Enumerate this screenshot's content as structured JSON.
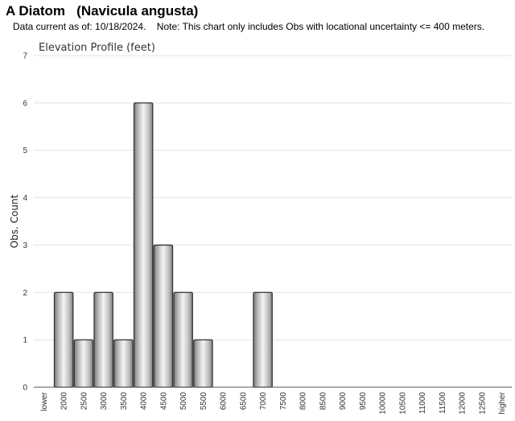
{
  "header": {
    "title": "A Diatom   (Navicula angusta)",
    "subtitle": "Data current as of: 10/18/2024.    Note: This chart only includes Obs with locational uncertainty <= 400 meters."
  },
  "chart_data": {
    "type": "bar",
    "title": "Elevation Profile (feet)",
    "xlabel": "",
    "ylabel": "Obs. Count",
    "ylim": [
      0,
      7
    ],
    "yticks": [
      0,
      1,
      2,
      3,
      4,
      5,
      6,
      7
    ],
    "grid": true,
    "categories": [
      "lower",
      "2000",
      "2500",
      "3000",
      "3500",
      "4000",
      "4500",
      "5000",
      "5500",
      "6000",
      "6500",
      "7000",
      "7500",
      "8000",
      "8500",
      "9000",
      "9500",
      "10000",
      "10500",
      "11000",
      "11500",
      "12000",
      "12500",
      "higher"
    ],
    "values": [
      0,
      2,
      1,
      2,
      1,
      6,
      3,
      2,
      1,
      0,
      0,
      2,
      0,
      0,
      0,
      0,
      0,
      0,
      0,
      0,
      0,
      0,
      0,
      0
    ],
    "bar_color": "#c8c8c8",
    "bar_edge_color": "#333333",
    "grid_color": "#e3e3e3"
  }
}
